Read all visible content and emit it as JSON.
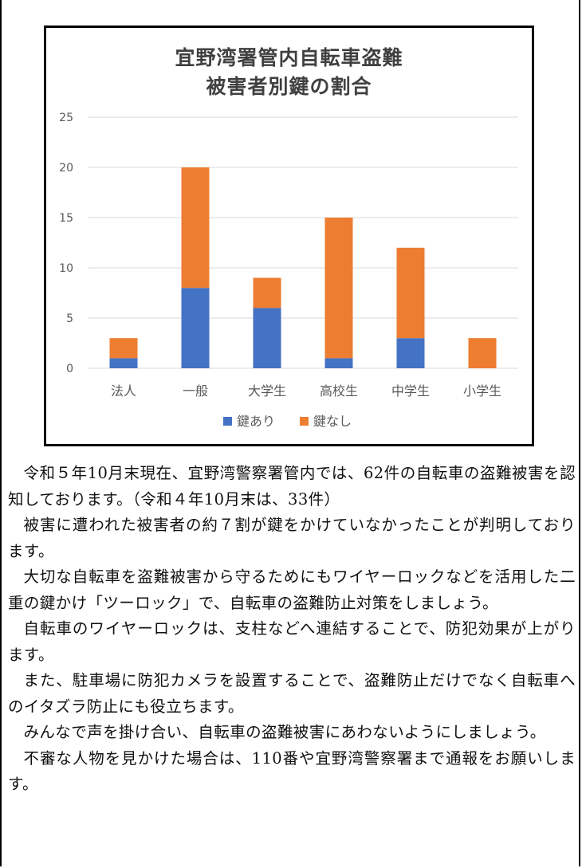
{
  "chart_data": {
    "type": "bar",
    "stacked": true,
    "title_line1": "宜野湾署管内自転車盗難",
    "title_line2": "被害者別鍵の割合",
    "categories": [
      "法人",
      "一般",
      "大学生",
      "高校生",
      "中学生",
      "小学生"
    ],
    "series": [
      {
        "name": "鍵あり",
        "color": "#4472c4",
        "values": [
          1,
          8,
          6,
          1,
          3,
          0
        ]
      },
      {
        "name": "鍵なし",
        "color": "#ed7d31",
        "values": [
          2,
          12,
          3,
          14,
          9,
          3
        ]
      }
    ],
    "ylim": [
      0,
      25
    ],
    "yticks": [
      "0",
      "5",
      "10",
      "15",
      "20",
      "25"
    ],
    "grid": true,
    "legend_position": "bottom"
  },
  "text": {
    "paragraphs": [
      "令和５年10月末現在、宜野湾警察署管内では、62件の自転車の盗難被害を認知しております。（令和４年10月末は、33件）",
      "被害に遭われた被害者の約７割が鍵をかけていなかったことが判明しております。",
      "大切な自転車を盗難被害から守るためにもワイヤーロックなどを活用した二重の鍵かけ「ツーロック」で、自転車の盗難防止対策をしましょう。",
      "自転車のワイヤーロックは、支柱などへ連結することで、防犯効果が上がります。",
      "また、駐車場に防犯カメラを設置することで、盗難防止だけでなく自転車へのイタズラ防止にも役立ちます。",
      "みんなで声を掛け合い、自転車の盗難被害にあわないようにしましょう。",
      "不審な人物を見かけた場合は、110番や宜野湾警察署まで通報をお願いします。"
    ]
  }
}
